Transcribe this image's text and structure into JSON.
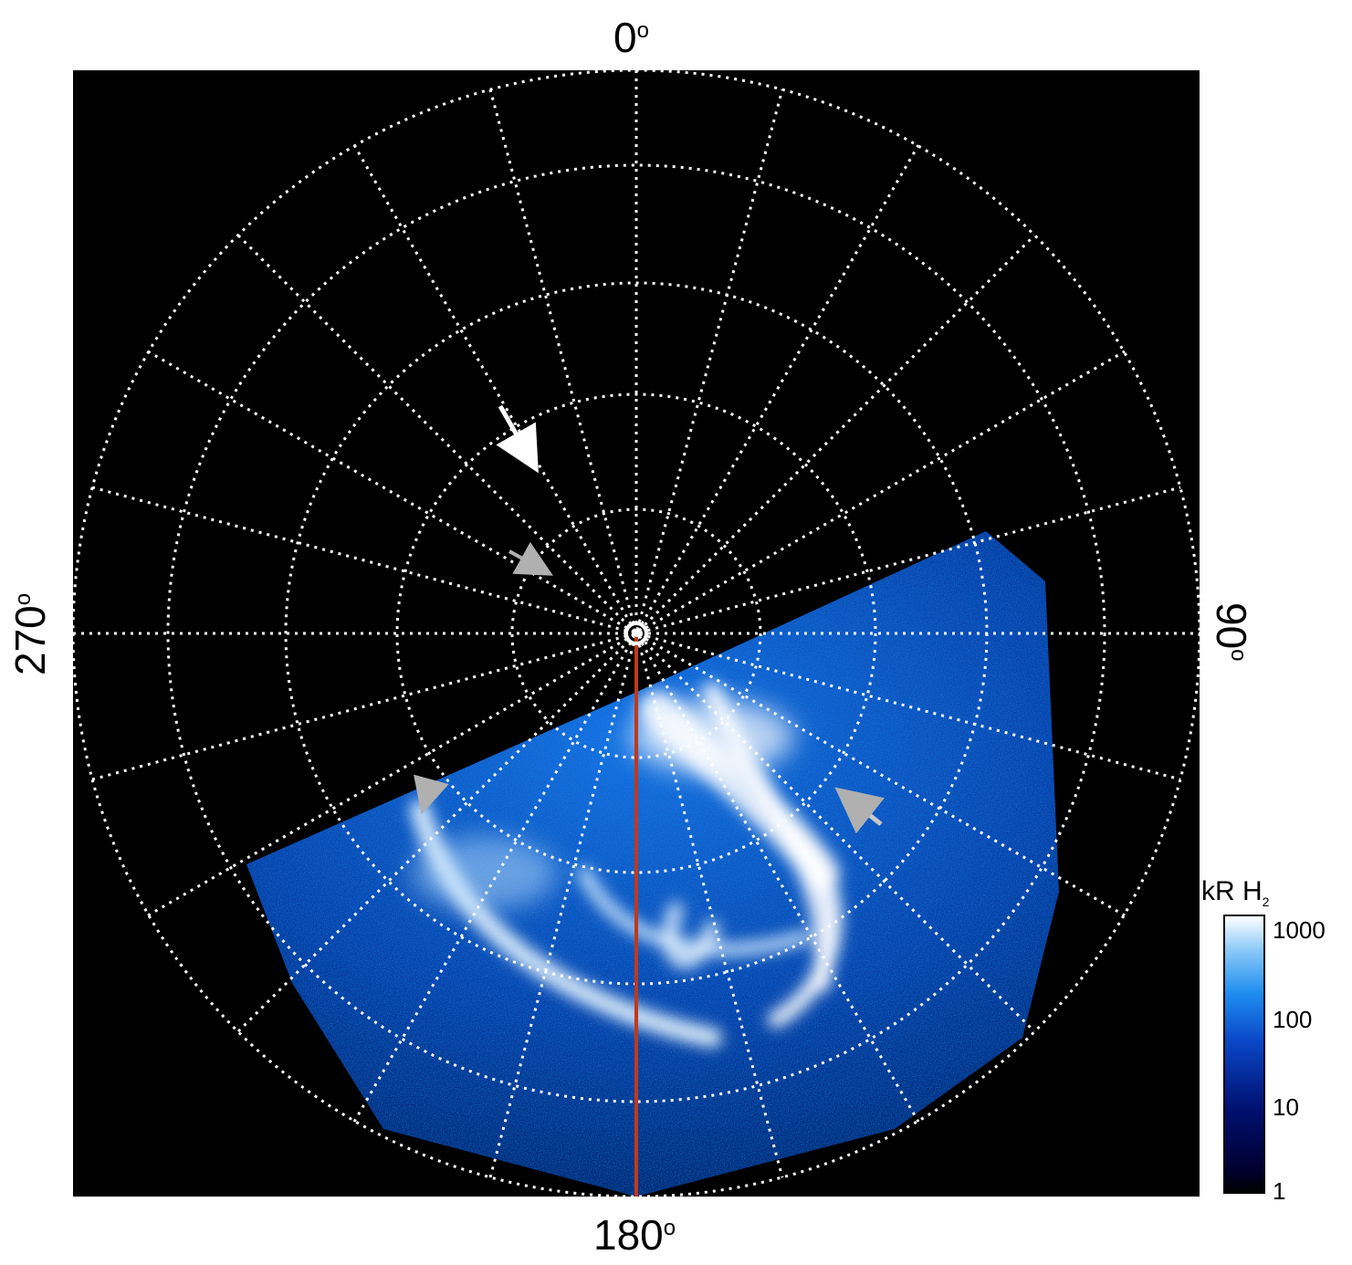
{
  "axis_labels": {
    "top": "0",
    "bottom": "180",
    "left": "270",
    "right": "90",
    "degree_symbol": "o"
  },
  "colorbar": {
    "title": "kR H",
    "title_subscript": "2",
    "ticks": [
      "1000",
      "100",
      "10",
      "1"
    ],
    "scale": "log",
    "range": [
      1,
      1000
    ],
    "colors": [
      "#000000",
      "#001070",
      "#1e8ef0",
      "#ffffff"
    ]
  },
  "image": {
    "description_kind": "polar auroral emission map",
    "background": "#000000",
    "grid_color": "#ffffff",
    "meridian_line_color": "#c0391b",
    "arrow_colors": [
      "#ffffff",
      "#b0b0b0"
    ]
  }
}
